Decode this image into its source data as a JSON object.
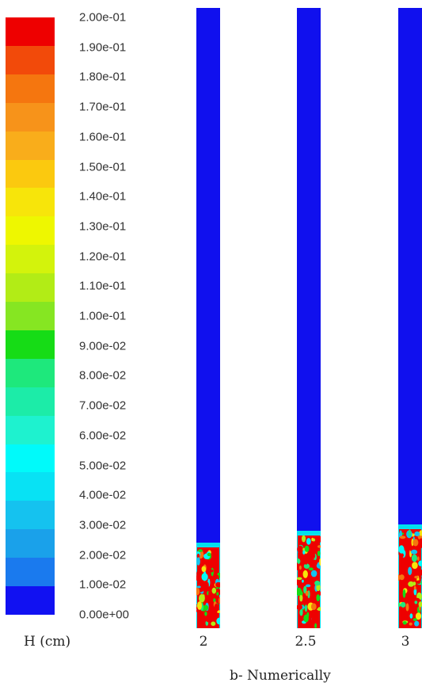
{
  "legend": {
    "ticks": [
      "2.00e-01",
      "1.90e-01",
      "1.80e-01",
      "1.70e-01",
      "1.60e-01",
      "1.50e-01",
      "1.40e-01",
      "1.30e-01",
      "1.20e-01",
      "1.10e-01",
      "1.00e-01",
      "9.00e-02",
      "8.00e-02",
      "7.00e-02",
      "6.00e-02",
      "5.00e-02",
      "4.00e-02",
      "3.00e-02",
      "2.00e-02",
      "1.00e-02",
      "0.00e+00"
    ],
    "colors_top_to_bottom": [
      "#ee0000",
      "#f24a0a",
      "#f5760f",
      "#f7931a",
      "#f9ad1b",
      "#fbc90f",
      "#f7e50a",
      "#eef700",
      "#d3f30c",
      "#b2ec16",
      "#86e622",
      "#16dc16",
      "#1ee87c",
      "#1ceca8",
      "#1ef2cf",
      "#00fafa",
      "#08e2f4",
      "#15c2ef",
      "#1aa1ea",
      "#1a7aee",
      "#1111f2"
    ]
  },
  "unit_label": "H (cm)",
  "columns": [
    {
      "label": "2",
      "fill_fraction": 0.13,
      "background": "#1010ee"
    },
    {
      "label": "2.5",
      "fill_fraction": 0.15,
      "background": "#1010ee"
    },
    {
      "label": "3",
      "fill_fraction": 0.16,
      "background": "#1010ee"
    }
  ],
  "caption": "b- Numerically"
}
